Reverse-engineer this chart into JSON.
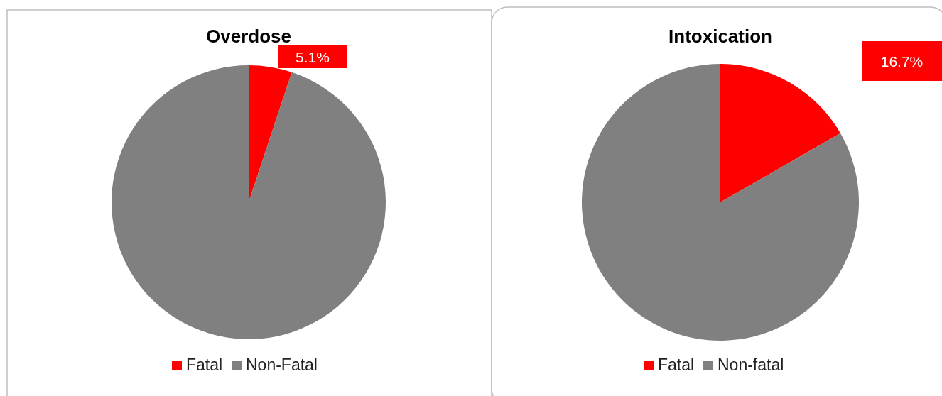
{
  "chart_data": [
    {
      "type": "pie",
      "title": "Overdose",
      "categories": [
        "Fatal",
        "Non-Fatal"
      ],
      "values": [
        5.1,
        94.9
      ],
      "colors": [
        "#ff0000",
        "#808080"
      ],
      "value_labels": [
        "5.1%",
        null
      ],
      "legend": "bottom"
    },
    {
      "type": "pie",
      "title": "Intoxication",
      "categories": [
        "Fatal",
        "Non-fatal"
      ],
      "values": [
        16.7,
        83.3
      ],
      "colors": [
        "#ff0000",
        "#808080"
      ],
      "value_labels": [
        "16.7%",
        null
      ],
      "legend": "bottom"
    }
  ]
}
